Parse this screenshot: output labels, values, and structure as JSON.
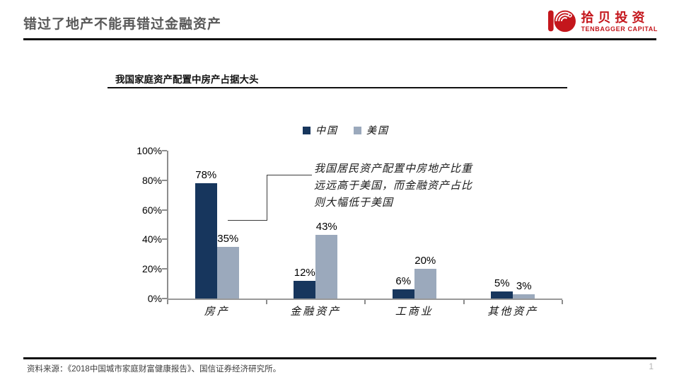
{
  "slide": {
    "title": "错过了地产不能再错过金融资产",
    "footer_source": "资料来源：《2018中国城市家庭财富健康报告》、国信证券经济研究所。",
    "page_number": "1"
  },
  "logo": {
    "name_cn": "拾贝投资",
    "name_en": "TENBAGGER CAPITAL",
    "brand_color": "#c4161c"
  },
  "chart_data": {
    "type": "bar",
    "title": "我国家庭资产配置中房产占据大头",
    "categories": [
      "房产",
      "金融资产",
      "工商业",
      "其他资产"
    ],
    "series": [
      {
        "name": "中国",
        "color": "#17365D",
        "values": [
          78,
          12,
          6,
          5
        ]
      },
      {
        "name": "美国",
        "color": "#9BA9BC",
        "values": [
          35,
          43,
          20,
          3
        ]
      }
    ],
    "ylim": [
      0,
      100
    ],
    "yticks": [
      0,
      20,
      40,
      60,
      80,
      100
    ],
    "ytick_labels": [
      "0%",
      "20%",
      "40%",
      "60%",
      "80%",
      "100%"
    ],
    "value_suffix": "%",
    "grid": false,
    "legend_position": "top",
    "annotation": "我国居民资产配置中房地产比重远远高于美国，而金融资产占比则大幅低于美国"
  }
}
